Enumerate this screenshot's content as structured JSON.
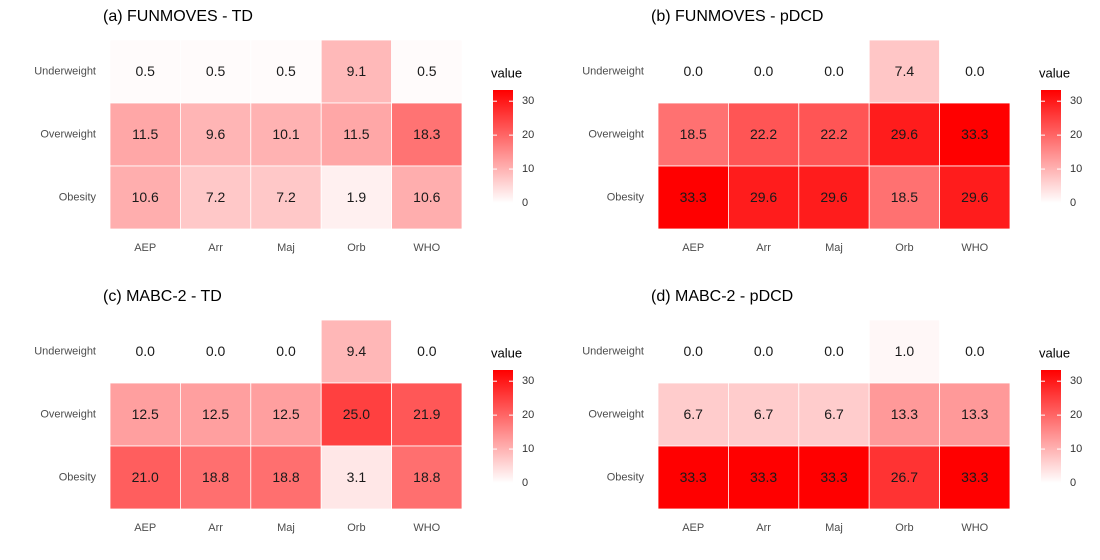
{
  "chart_data": [
    {
      "type": "heatmap",
      "title": "(a) FUNMOVES - TD",
      "x": [
        "AEP",
        "Arr",
        "Maj",
        "Orb",
        "WHO"
      ],
      "y": [
        "Underweight",
        "Overweight",
        "Obesity"
      ],
      "values": [
        [
          0.5,
          0.5,
          0.5,
          9.1,
          0.5
        ],
        [
          11.5,
          9.6,
          10.1,
          11.5,
          18.3
        ],
        [
          10.6,
          7.2,
          7.2,
          1.9,
          10.6
        ]
      ],
      "value_labels": [
        [
          "0.5",
          "0.5",
          "0.5",
          "9.1",
          "0.5"
        ],
        [
          "11.5",
          "9.6",
          "10.1",
          "11.5",
          "18.3"
        ],
        [
          "10.6",
          "7.2",
          "7.2",
          "1.9",
          "10.6"
        ]
      ],
      "legend_title": "value",
      "clim": [
        0,
        33.3
      ],
      "cticks": [
        0,
        10,
        20,
        30
      ],
      "colors": [
        "#ffffff",
        "#ff0000"
      ]
    },
    {
      "type": "heatmap",
      "title": "(b) FUNMOVES - pDCD",
      "x": [
        "AEP",
        "Arr",
        "Maj",
        "Orb",
        "WHO"
      ],
      "y": [
        "Underweight",
        "Overweight",
        "Obesity"
      ],
      "values": [
        [
          0,
          0,
          0,
          7.4,
          0
        ],
        [
          18.5,
          22.2,
          22.2,
          29.6,
          33.3
        ],
        [
          33.3,
          29.6,
          29.6,
          18.5,
          29.6
        ]
      ],
      "value_labels": [
        [
          "0.0",
          "0.0",
          "0.0",
          "7.4",
          "0.0"
        ],
        [
          "18.5",
          "22.2",
          "22.2",
          "29.6",
          "33.3"
        ],
        [
          "33.3",
          "29.6",
          "29.6",
          "18.5",
          "29.6"
        ]
      ],
      "legend_title": "value",
      "clim": [
        0,
        33.3
      ],
      "cticks": [
        0,
        10,
        20,
        30
      ],
      "colors": [
        "#ffffff",
        "#ff0000"
      ]
    },
    {
      "type": "heatmap",
      "title": "(c) MABC-2 - TD",
      "x": [
        "AEP",
        "Arr",
        "Maj",
        "Orb",
        "WHO"
      ],
      "y": [
        "Underweight",
        "Overweight",
        "Obesity"
      ],
      "values": [
        [
          0,
          0,
          0,
          9.4,
          0
        ],
        [
          12.5,
          12.5,
          12.5,
          25.0,
          21.9
        ],
        [
          21.0,
          18.8,
          18.8,
          3.1,
          18.8
        ]
      ],
      "value_labels": [
        [
          "0.0",
          "0.0",
          "0.0",
          "9.4",
          "0.0"
        ],
        [
          "12.5",
          "12.5",
          "12.5",
          "25.0",
          "21.9"
        ],
        [
          "21.0",
          "18.8",
          "18.8",
          "3.1",
          "18.8"
        ]
      ],
      "legend_title": "value",
      "clim": [
        0,
        33.3
      ],
      "cticks": [
        0,
        10,
        20,
        30
      ],
      "colors": [
        "#ffffff",
        "#ff0000"
      ]
    },
    {
      "type": "heatmap",
      "title": "(d) MABC-2 - pDCD",
      "x": [
        "AEP",
        "Arr",
        "Maj",
        "Orb",
        "WHO"
      ],
      "y": [
        "Underweight",
        "Overweight",
        "Obesity"
      ],
      "values": [
        [
          0,
          0,
          0,
          1.0,
          0
        ],
        [
          6.7,
          6.7,
          6.7,
          13.3,
          13.3
        ],
        [
          33.3,
          33.3,
          33.3,
          26.7,
          33.3
        ]
      ],
      "value_labels": [
        [
          "0.0",
          "0.0",
          "0.0",
          "1.0",
          "0.0"
        ],
        [
          "6.7",
          "6.7",
          "6.7",
          "13.3",
          "13.3"
        ],
        [
          "33.3",
          "33.3",
          "33.3",
          "26.7",
          "33.3"
        ]
      ],
      "legend_title": "value",
      "clim": [
        0,
        33.3
      ],
      "cticks": [
        0,
        10,
        20,
        30
      ],
      "colors": [
        "#ffffff",
        "#ff0000"
      ]
    }
  ]
}
